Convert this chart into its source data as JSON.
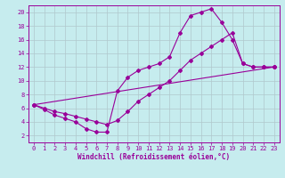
{
  "xlabel": "Windchill (Refroidissement éolien,°C)",
  "xlim": [
    -0.5,
    23.5
  ],
  "ylim": [
    1,
    21
  ],
  "xticks": [
    0,
    1,
    2,
    3,
    4,
    5,
    6,
    7,
    8,
    9,
    10,
    11,
    12,
    13,
    14,
    15,
    16,
    17,
    18,
    19,
    20,
    21,
    22,
    23
  ],
  "yticks": [
    2,
    4,
    6,
    8,
    10,
    12,
    14,
    16,
    18,
    20
  ],
  "bg_color": "#c6ecee",
  "grid_color": "#b0c8cc",
  "line_color": "#990099",
  "line1_x": [
    0,
    1,
    2,
    3,
    4,
    5,
    6,
    7,
    8,
    9,
    10,
    11,
    12,
    13,
    14,
    15,
    16,
    17,
    18,
    19,
    20,
    21,
    22,
    23
  ],
  "line1_y": [
    6.5,
    5.8,
    5.0,
    4.5,
    4.0,
    3.0,
    2.5,
    2.5,
    8.5,
    10.5,
    11.5,
    12.0,
    12.5,
    13.5,
    17.0,
    19.5,
    20.0,
    20.5,
    18.5,
    16.0,
    12.5,
    12.0,
    12.0,
    12.0
  ],
  "line2_x": [
    0,
    1,
    2,
    3,
    4,
    5,
    6,
    7,
    8,
    9,
    10,
    11,
    12,
    13,
    14,
    15,
    16,
    17,
    18,
    19,
    20,
    21,
    22,
    23
  ],
  "line2_y": [
    6.5,
    6.0,
    5.5,
    5.2,
    4.8,
    4.4,
    4.0,
    3.6,
    4.2,
    5.5,
    7.0,
    8.0,
    9.0,
    10.0,
    11.5,
    13.0,
    14.0,
    15.0,
    16.0,
    17.0,
    12.5,
    12.0,
    12.0,
    12.0
  ],
  "line3_x": [
    0,
    23
  ],
  "line3_y": [
    6.5,
    12.0
  ],
  "tick_fontsize": 5,
  "xlabel_fontsize": 5.5,
  "marker_size": 2.0,
  "line_width": 0.8
}
